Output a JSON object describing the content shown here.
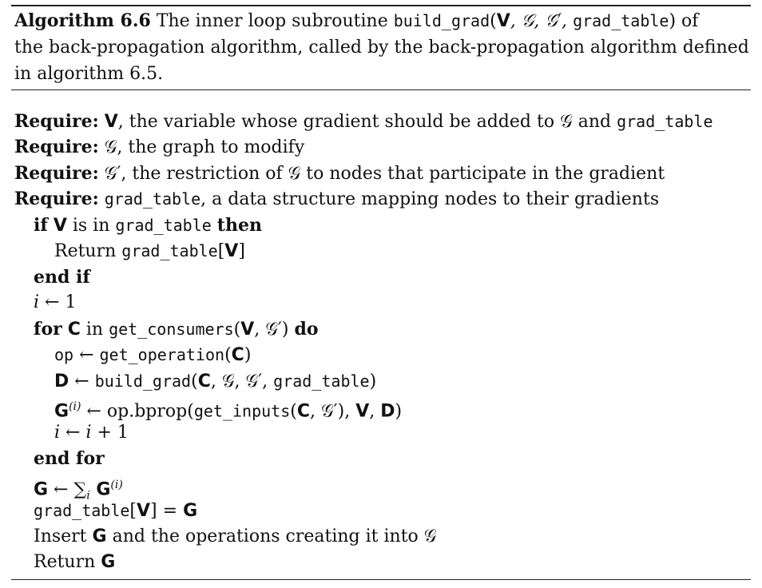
{
  "caption": {
    "label": "Algorithm 6.6",
    "text_a": "The inner loop subroutine ",
    "func_name": "build_grad",
    "args_open": "(",
    "args_V": "V",
    "args_mid": ", 𝒢, 𝒢′, ",
    "args_table": "grad_table",
    "args_close": ") of",
    "text_b": "the back-propagation algorithm, called by the back-propagation algorithm defined",
    "text_c": "in algorithm 6.5."
  },
  "lines": {
    "req1_kw": "Require:",
    "req1_V": "V",
    "req1_text": ", the variable whose gradient should be added to 𝒢 and ",
    "req1_table": "grad_table",
    "req2_kw": "Require:",
    "req2_text": "𝒢, the graph to modify",
    "req3_kw": "Require:",
    "req3_text": "𝒢′, the restriction of 𝒢 to nodes that participate in the gradient",
    "req4_kw": "Require:",
    "req4_table": "grad_table",
    "req4_text": ", a data structure mapping nodes to their gradients",
    "if_kw": "if",
    "if_V": "V",
    "if_text": " is in ",
    "if_table": "grad_table",
    "if_then": "then",
    "ret1_text": "Return ",
    "ret1_table": "grad_table",
    "ret1_lb": "[",
    "ret1_V": "V",
    "ret1_rb": "]",
    "endif_kw": "end if",
    "init_i": "i",
    "init_rest": " ← 1",
    "for_kw": "for",
    "for_C": "C",
    "for_in": " in ",
    "for_func": "get_consumers",
    "for_open": "(",
    "for_V": "V",
    "for_rest": ", 𝒢′)",
    "for_do": "do",
    "op_lhs": "op",
    "op_arrow": " ← ",
    "op_func": "get_operation",
    "op_open": "(",
    "op_C": "C",
    "op_close": ")",
    "d_lhs": "D",
    "d_arrow": " ← ",
    "d_func": "build_grad",
    "d_open": "(",
    "d_C": "C",
    "d_mid": ", 𝒢, 𝒢′, ",
    "d_table": "grad_table",
    "d_close": ")",
    "g_lhs": "G",
    "g_sup": "(i)",
    "g_arrow": " ← ",
    "g_op": "op.bprop",
    "g_open": "(",
    "g_func": "get_inputs",
    "g_open2": "(",
    "g_C": "C",
    "g_mid": ", 𝒢′), ",
    "g_V": "V",
    "g_comma": ", ",
    "g_D": "D",
    "g_close": ")",
    "inc_i": "i",
    "inc_arrow": " ← ",
    "inc_i2": "i",
    "inc_rest": " + 1",
    "endfor_kw": "end for",
    "sum_lhs": "G",
    "sum_arrow": " ← ∑",
    "sum_sub": "i",
    "sum_G": " G",
    "sum_sup": "(i)",
    "assign_table": "grad_table",
    "assign_lb": "[",
    "assign_V": "V",
    "assign_rb": "]",
    "assign_eq": " = ",
    "assign_G": "G",
    "insert_text": "Insert ",
    "insert_G": "G",
    "insert_rest": " and the operations creating it into 𝒢",
    "ret2_text": "Return ",
    "ret2_G": "G"
  }
}
